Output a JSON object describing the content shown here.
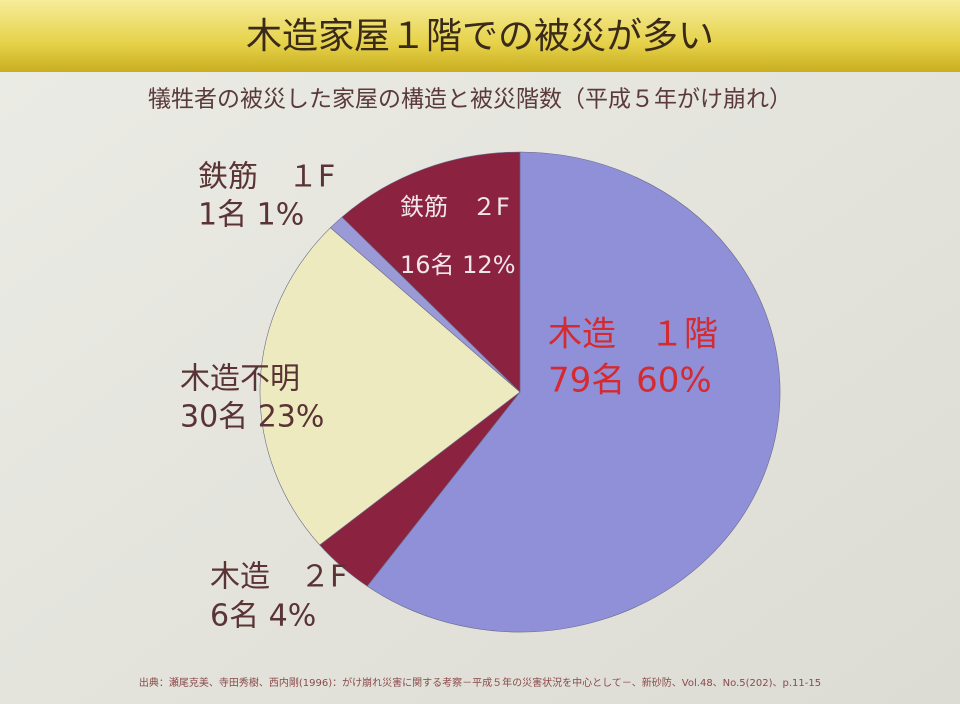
{
  "chart_data": {
    "type": "pie",
    "title": "木造家屋１階での被災が多い",
    "subtitle": "犠牲者の被災した家屋の構造と被災階数（平成５年がけ崩れ）",
    "categories": [
      "木造　１階",
      "木造　２F",
      "木造不明",
      "鉄筋　１F",
      "鉄筋　２F"
    ],
    "values": [
      60,
      4,
      23,
      1,
      12
    ],
    "value_labels": [
      "79名 60%",
      "6名 4%",
      "30名 23%",
      "1名 1%",
      "16名 12%"
    ],
    "colors": [
      "#9090d8",
      "#8a2240",
      "#eeeac0",
      "#9a9ad6",
      "#8a2240"
    ],
    "label_colors": [
      "#d42a30",
      "#5a3434",
      "#5a3434",
      "#5a3434",
      "#f0e6ea"
    ],
    "source": "出典：瀬尾克美、寺田秀樹、西内剛(1996)：がけ崩れ災害に関する考察－平成５年の災害状況を中心として－、新砂防、Vol.48、No.5(202)、p.11-15"
  }
}
